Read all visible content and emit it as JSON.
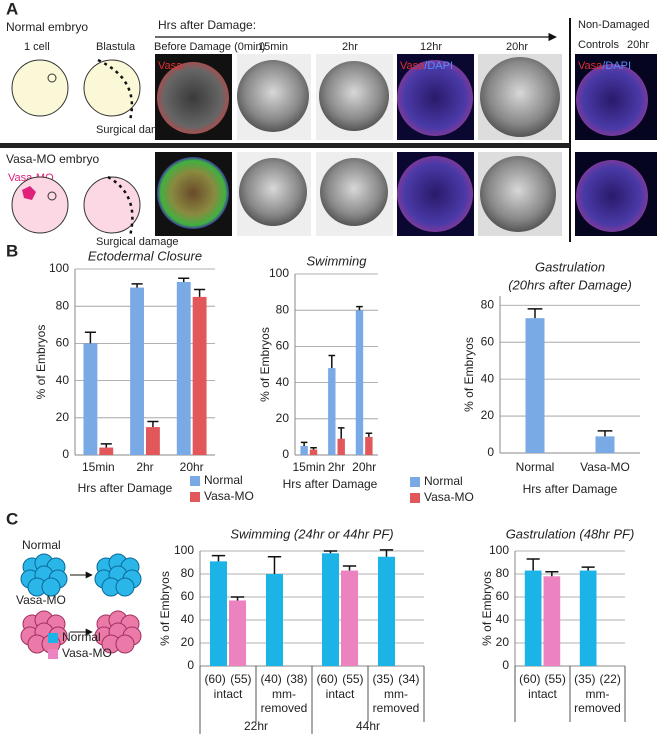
{
  "panel_labels": [
    "A",
    "B",
    "C"
  ],
  "panel_a": {
    "timeline": "Hrs after Damage:",
    "stages": [
      "1 cell",
      "Blastula",
      "Before Damage (0min)",
      "15min",
      "2hr",
      "12hr",
      "20hr"
    ],
    "controls": [
      "Non-Damaged",
      "Controls"
    ],
    "controls_time": "20hr",
    "rows": [
      {
        "label": "Normal embryo",
        "surgical": "Surgical damage"
      },
      {
        "label": "Vasa-MO embryo",
        "surgical": "Surgical damage",
        "injection": "Vasa-MO"
      }
    ],
    "overlays": [
      {
        "red": "Vasa"
      },
      {
        "red": "Vasa",
        "blue": "/DAPI"
      },
      {
        "red": "Vasa",
        "blue": "/DAPI"
      }
    ]
  },
  "panel_c": {
    "normal_label": "Normal",
    "vasa_label": "Vasa-MO"
  },
  "chart_data": [
    {
      "type": "bar",
      "title": "Ectodermal Closure",
      "xlabel": "Hrs after Damage",
      "ylabel": "% of Embryos",
      "categories": [
        "15min",
        "2hr",
        "20hr"
      ],
      "series": [
        {
          "name": "Normal",
          "color": "#7aaae6",
          "values": [
            60,
            90,
            93
          ],
          "errors": [
            6,
            2,
            2
          ]
        },
        {
          "name": "Vasa-MO",
          "color": "#e2585a",
          "values": [
            4,
            15,
            85
          ],
          "errors": [
            2,
            3,
            4
          ]
        }
      ],
      "ylim": [
        0,
        100
      ],
      "yticks": [
        0,
        20,
        40,
        60,
        80,
        100
      ],
      "grid": true
    },
    {
      "type": "bar",
      "title": "Swimming",
      "xlabel": "Hrs after Damage",
      "ylabel": "% of Embryos",
      "categories": [
        "15min",
        "2hr",
        "20hr"
      ],
      "series": [
        {
          "name": "Normal",
          "color": "#7aaae6",
          "values": [
            5,
            48,
            80
          ],
          "errors": [
            2,
            7,
            2
          ]
        },
        {
          "name": "Vasa-MO",
          "color": "#e2585a",
          "values": [
            3,
            9,
            10
          ],
          "errors": [
            1,
            6,
            2
          ]
        }
      ],
      "ylim": [
        0,
        100
      ],
      "yticks": [
        0,
        20,
        40,
        60,
        80,
        100
      ],
      "grid": true
    },
    {
      "type": "bar",
      "title": "Gastrulation",
      "subtitle": "(20hrs after Damage)",
      "xlabel": "Hrs after Damage",
      "ylabel": "% of Embryos",
      "categories": [
        "Normal",
        "Vasa-MO"
      ],
      "values": [
        73,
        9
      ],
      "errors": [
        5,
        3
      ],
      "color": "#7aaae6",
      "ylim": [
        0,
        85
      ],
      "yticks": [
        0,
        20,
        40,
        60,
        80
      ],
      "grid": true
    },
    {
      "type": "bar",
      "title": "Swimming (24hr or 44hr PF)",
      "ylabel": "% of Embryos",
      "categories": [
        [
          "intact"
        ],
        [
          "mm-",
          "removed"
        ],
        [
          "intact"
        ],
        [
          "mm-",
          "removed"
        ]
      ],
      "counts": [
        [
          "(60)",
          "(55)"
        ],
        [
          "(40)",
          "(38)"
        ],
        [
          "(60)",
          "(55)"
        ],
        [
          "(35)",
          "(34)"
        ]
      ],
      "groups": [
        "22hr",
        "44hr"
      ],
      "series": [
        {
          "name": "Normal",
          "color": "#1cb4e6",
          "values": [
            91,
            80,
            98,
            95
          ],
          "errors": [
            5,
            15,
            2,
            6
          ]
        },
        {
          "name": "Vasa-MO",
          "color": "#ec82bf",
          "values": [
            57,
            null,
            83,
            null
          ],
          "errors": [
            3,
            null,
            4,
            null
          ]
        }
      ],
      "ylim": [
        0,
        100
      ],
      "yticks": [
        0,
        20,
        40,
        60,
        80,
        100
      ],
      "grid": true
    },
    {
      "type": "bar",
      "title": "Gastrulation (48hr PF)",
      "ylabel": "% of Embryos",
      "categories": [
        [
          "intact"
        ],
        [
          "mm-",
          "removed"
        ]
      ],
      "counts": [
        [
          "(60)",
          "(55)"
        ],
        [
          "(35)",
          "(22)"
        ]
      ],
      "series": [
        {
          "color": "#1cb4e6",
          "values": [
            83,
            83
          ],
          "errors": [
            10,
            3
          ]
        },
        {
          "color": "#ec82bf",
          "values": [
            78,
            null
          ],
          "errors": [
            4,
            null
          ]
        }
      ],
      "ylim": [
        0,
        100
      ],
      "yticks": [
        0,
        20,
        40,
        60,
        80,
        100
      ],
      "grid": true
    }
  ]
}
